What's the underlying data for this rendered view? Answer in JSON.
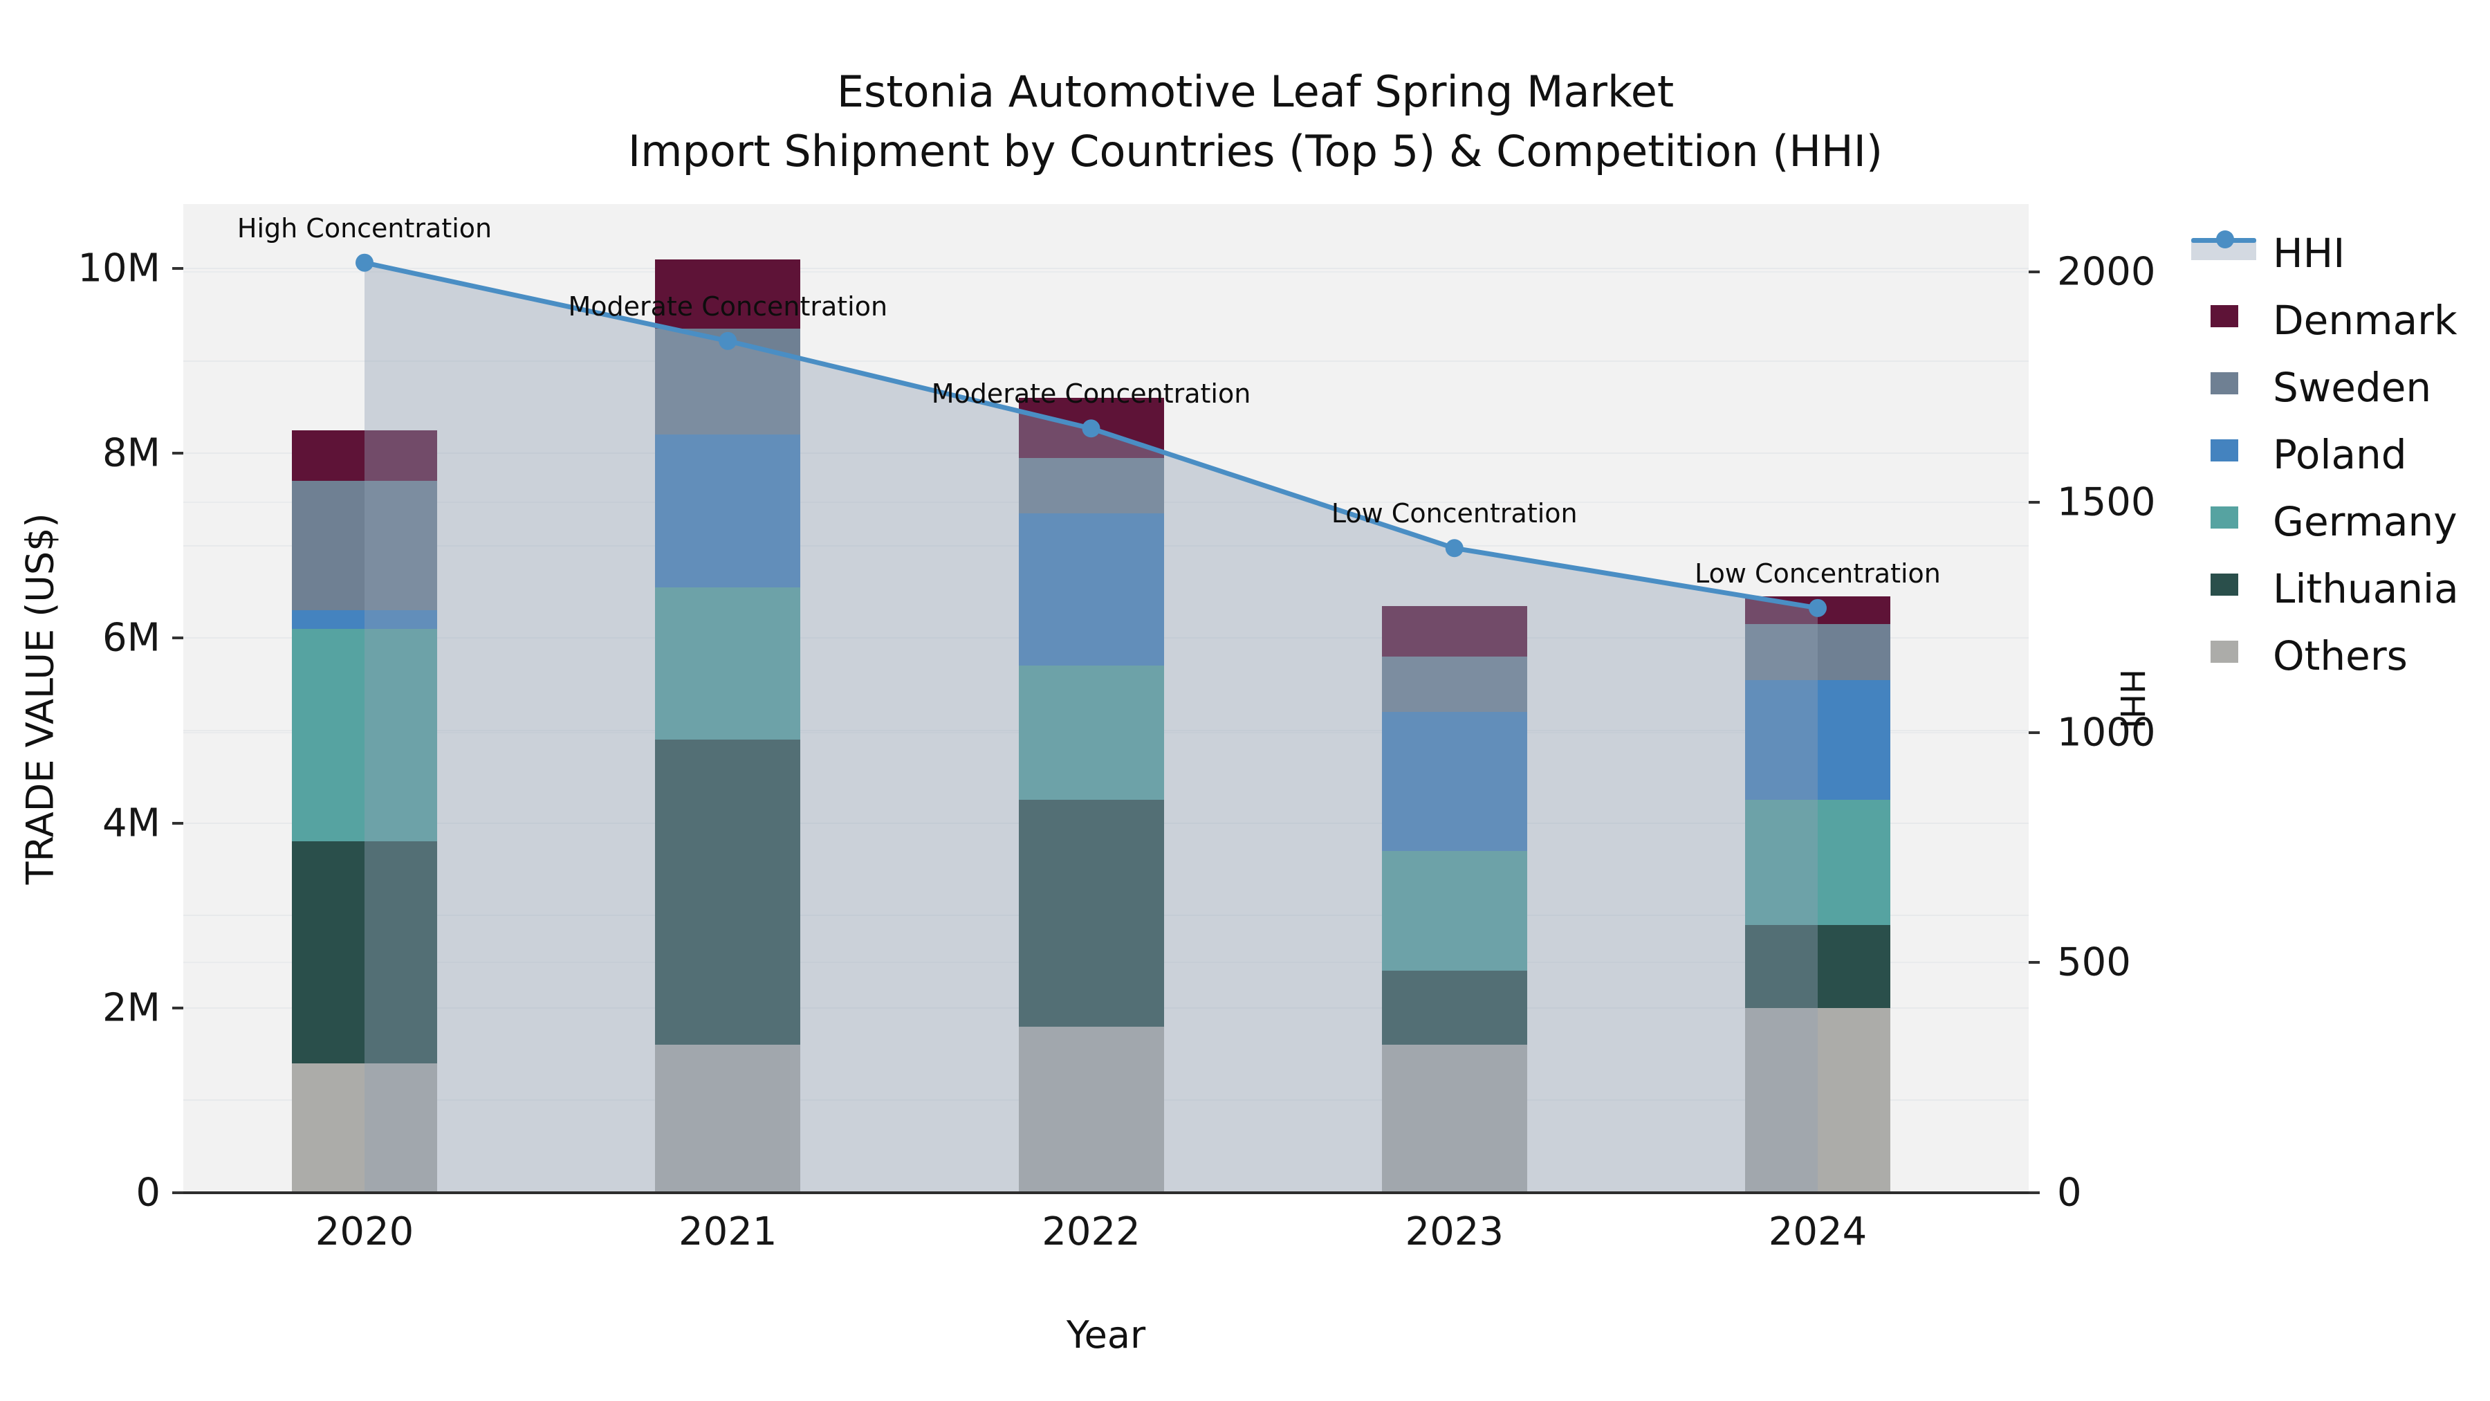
{
  "chart_data": {
    "type": "stacked_bar_with_line",
    "title": "Estonia Automotive Leaf Spring Market",
    "subtitle": "Import Shipment by Countries (Top 5) & Competition (HHI)",
    "xlabel": "Year",
    "ylabel_left": "TRADE VALUE (US$)",
    "ylabel_right": "HHI",
    "categories": [
      "2020",
      "2021",
      "2022",
      "2023",
      "2024"
    ],
    "unit": "million US$",
    "series": [
      {
        "name": "Others",
        "color": "#acaca9",
        "values": [
          1.4,
          1.6,
          1.8,
          1.6,
          2.0
        ]
      },
      {
        "name": "Lithuania",
        "color": "#2a4f4b",
        "values": [
          2.4,
          3.3,
          2.45,
          0.8,
          0.9
        ]
      },
      {
        "name": "Germany",
        "color": "#56a3a1",
        "values": [
          2.3,
          1.65,
          1.45,
          1.3,
          1.35
        ]
      },
      {
        "name": "Poland",
        "color": "#4483bf",
        "values": [
          0.2,
          1.65,
          1.65,
          1.5,
          1.3
        ]
      },
      {
        "name": "Sweden",
        "color": "#6f8093",
        "values": [
          1.4,
          1.15,
          0.6,
          0.6,
          0.6
        ]
      },
      {
        "name": "Denmark",
        "color": "#5e1337",
        "values": [
          0.55,
          0.75,
          0.65,
          0.55,
          0.3
        ]
      }
    ],
    "totals": [
      8.25,
      10.1,
      8.6,
      6.35,
      6.45
    ],
    "hhi_line": {
      "name": "HHI",
      "axis": "right",
      "values": [
        2020,
        1850,
        1660,
        1400,
        1270
      ],
      "line_color": "#4a8ec4",
      "area_fill_color": "rgba(145,160,180,0.40)"
    },
    "annotations": [
      {
        "year": "2020",
        "text": "High Concentration"
      },
      {
        "year": "2021",
        "text": "Moderate Concentration"
      },
      {
        "year": "2022",
        "text": "Moderate Concentration"
      },
      {
        "year": "2023",
        "text": "Low Concentration"
      },
      {
        "year": "2024",
        "text": "Low Concentration"
      }
    ],
    "axes": {
      "left": {
        "ticks": [
          {
            "label": "0",
            "value": 0
          },
          {
            "label": "2M",
            "value": 2
          },
          {
            "label": "4M",
            "value": 4
          },
          {
            "label": "6M",
            "value": 6
          },
          {
            "label": "8M",
            "value": 8
          },
          {
            "label": "10M",
            "value": 10
          }
        ],
        "gridline_step_m": 1
      },
      "right": {
        "ticks": [
          {
            "label": "0",
            "value": 0
          },
          {
            "label": "500",
            "value": 500
          },
          {
            "label": "1000",
            "value": 1000
          },
          {
            "label": "1500",
            "value": 1500
          },
          {
            "label": "2000",
            "value": 2000
          }
        ],
        "gridline_step": 500
      }
    },
    "legend": {
      "position": "right",
      "items": [
        "HHI",
        "Denmark",
        "Sweden",
        "Poland",
        "Germany",
        "Lithuania",
        "Others"
      ]
    },
    "style": {
      "plot_bg": "#f2f2f2",
      "grid_color": "#e7e9eb",
      "axis_line_color": "#2d2d2d",
      "text_color": "#111111"
    }
  }
}
